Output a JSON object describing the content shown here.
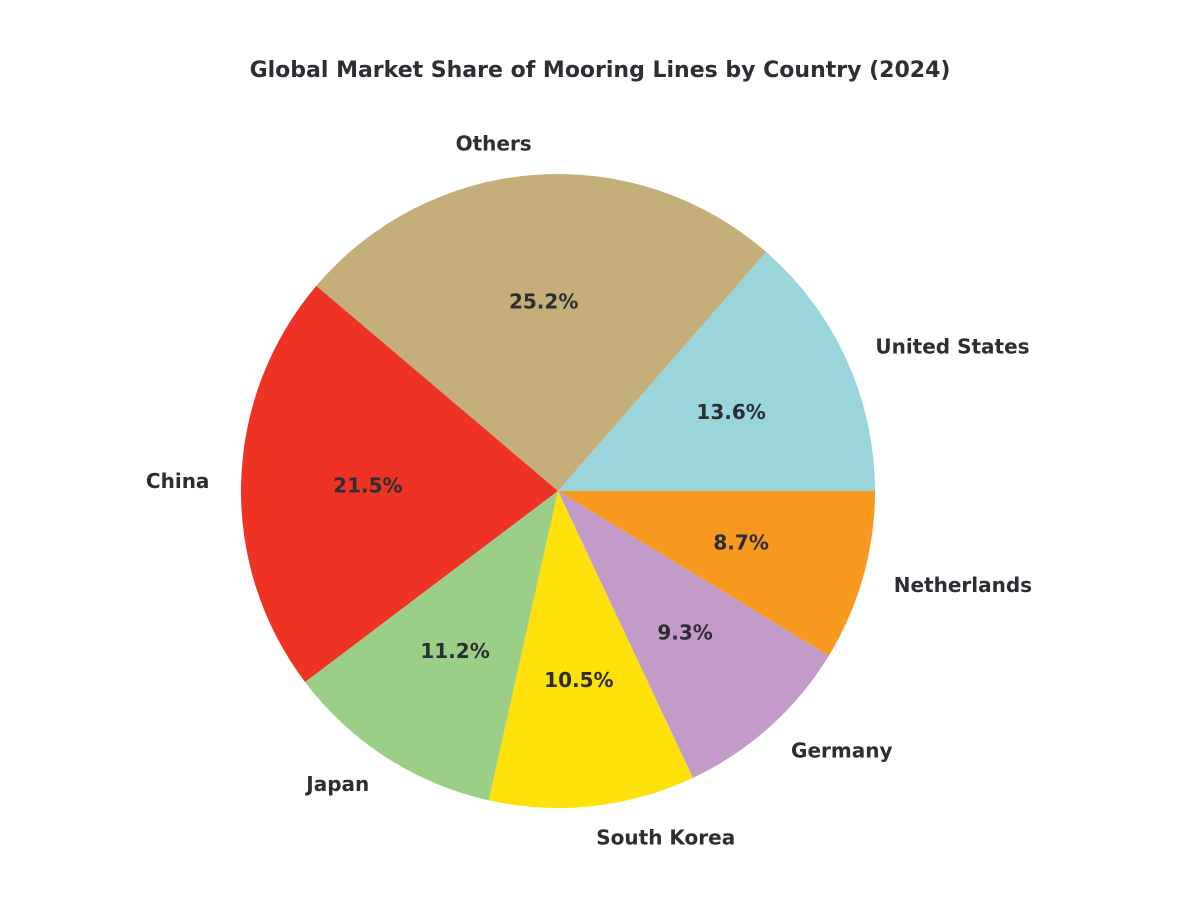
{
  "chart_data": {
    "type": "pie",
    "title": "Global Market Share of Mooring Lines by Country (2024)",
    "start_angle_deg": 0,
    "direction": "counterclockwise",
    "slices": [
      {
        "label": "United States",
        "value": 13.6,
        "pct_text": "13.6%",
        "color": "#9AD5DB"
      },
      {
        "label": "Others",
        "value": 25.2,
        "pct_text": "25.2%",
        "color": "#C4AF7A"
      },
      {
        "label": "China",
        "value": 21.5,
        "pct_text": "21.5%",
        "color": "#EE3324"
      },
      {
        "label": "Japan",
        "value": 11.2,
        "pct_text": "11.2%",
        "color": "#9BCF88"
      },
      {
        "label": "South Korea",
        "value": 10.5,
        "pct_text": "10.5%",
        "color": "#FEE00A"
      },
      {
        "label": "Germany",
        "value": 9.3,
        "pct_text": "9.3%",
        "color": "#C39BC8"
      },
      {
        "label": "Netherlands",
        "value": 8.7,
        "pct_text": "8.7%",
        "color": "#F7991F"
      }
    ]
  }
}
